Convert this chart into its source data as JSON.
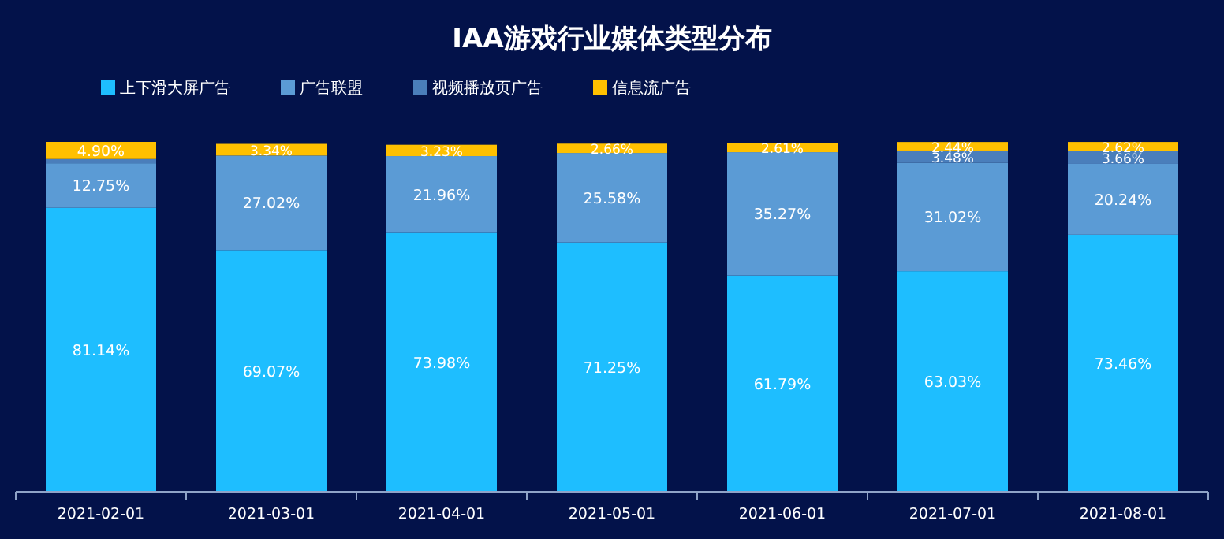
{
  "chart_data": {
    "type": "bar",
    "title": "IAA游戏行业媒体类型分布",
    "stacked": true,
    "legend": "top",
    "categories": [
      "2021-02-01",
      "2021-03-01",
      "2021-04-01",
      "2021-05-01",
      "2021-06-01",
      "2021-07-01",
      "2021-08-01"
    ],
    "series": [
      {
        "name": "上下滑大屏广告",
        "color": "#1ebeff",
        "values": [
          81.14,
          69.07,
          73.98,
          71.25,
          61.79,
          63.03,
          73.46
        ],
        "value_labels": [
          "81.14%",
          "69.07%",
          "73.98%",
          "71.25%",
          "61.79%",
          "63.03%",
          "73.46%"
        ]
      },
      {
        "name": "广告联盟",
        "color": "#5b9bd5",
        "values": [
          12.75,
          27.02,
          21.96,
          25.58,
          35.27,
          31.02,
          20.24
        ],
        "value_labels": [
          "12.75%",
          "27.02%",
          "21.96%",
          "25.58%",
          "35.27%",
          "31.02%",
          "20.24%"
        ]
      },
      {
        "name": "视频播放页广告",
        "color": "#4a7ebb",
        "values": [
          1.21,
          null,
          null,
          null,
          null,
          3.48,
          3.66
        ],
        "value_labels": [
          null,
          null,
          null,
          null,
          null,
          "3.48%",
          "3.66%"
        ]
      },
      {
        "name": "信息流广告",
        "color": "#ffc000",
        "values": [
          4.9,
          3.34,
          3.23,
          2.66,
          2.61,
          2.44,
          2.62
        ],
        "value_labels": [
          "4.90%",
          "3.34%",
          "3.23%",
          "2.66%",
          "2.61%",
          "2.44%",
          "2.62%"
        ]
      }
    ]
  }
}
